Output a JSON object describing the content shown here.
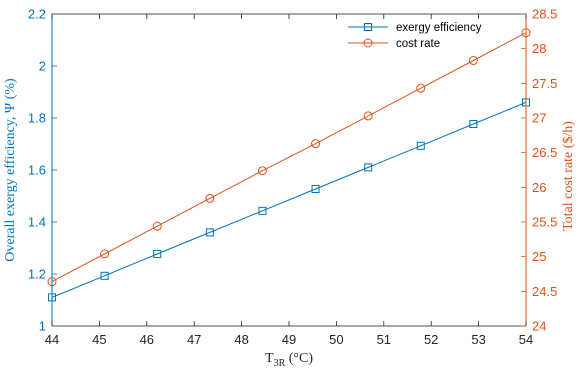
{
  "colors": {
    "left_axis": "#0072BD",
    "right_axis": "#D95319",
    "series_efficiency": "#0072BD",
    "series_cost": "#D95319",
    "box": "#262626"
  },
  "chart_data": {
    "type": "line",
    "title": "",
    "xlabel_main": "T",
    "xlabel_sub": "3R",
    "xlabel_unit": " (°C)",
    "ylabel_left": "Overall exergy efficiency, Ψ (%)",
    "ylabel_right": "Total cost rate ($/h)",
    "xlim": [
      44,
      54
    ],
    "ylim_left": [
      1,
      2.2
    ],
    "ylim_right": [
      24,
      28.5
    ],
    "x_ticks": [
      "44",
      "45",
      "46",
      "47",
      "48",
      "49",
      "50",
      "51",
      "52",
      "53",
      "54"
    ],
    "y_left_ticks": [
      "1",
      "1.2",
      "1.4",
      "1.6",
      "1.8",
      "2",
      "2.2"
    ],
    "y_right_ticks": [
      "24",
      "24.5",
      "25",
      "25.5",
      "26",
      "26.5",
      "27",
      "27.5",
      "28",
      "28.5"
    ],
    "grid": false,
    "legend_position": "top-right",
    "series": [
      {
        "name": "exergy efficiency",
        "axis": "left",
        "marker": "square",
        "x": [
          44,
          45.11,
          46.22,
          47.33,
          48.44,
          49.56,
          50.67,
          51.78,
          52.89,
          54
        ],
        "values": [
          1.11,
          1.193,
          1.277,
          1.36,
          1.443,
          1.527,
          1.61,
          1.693,
          1.777,
          1.86
        ]
      },
      {
        "name": "cost rate",
        "axis": "right",
        "marker": "circle",
        "x": [
          44,
          45.11,
          46.22,
          47.33,
          48.44,
          49.56,
          50.67,
          51.78,
          52.89,
          54
        ],
        "values": [
          24.64,
          25.04,
          25.44,
          25.84,
          26.24,
          26.63,
          27.03,
          27.43,
          27.83,
          28.23
        ]
      }
    ]
  }
}
